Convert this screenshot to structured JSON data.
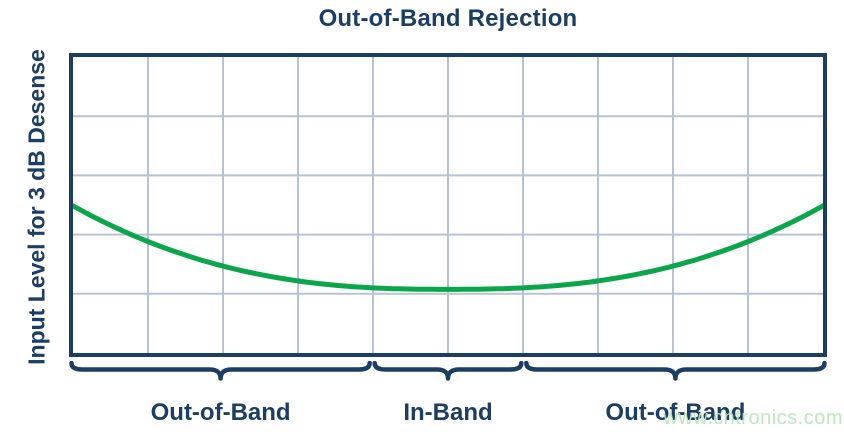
{
  "title": "Out-of-Band Rejection",
  "y_axis_label": "Input Level for 3 dB Desense",
  "watermark": {
    "text": "www.cntronics.com"
  },
  "colors": {
    "navy": "#1c3e63",
    "grid": "#b7c3d2",
    "curve_green": "#0ba64b",
    "watermark_green": "#bce4bd",
    "background": "#ffffff"
  },
  "chart_data": {
    "type": "line",
    "title": "Out-of-Band Rejection",
    "xlabel": "",
    "ylabel": "Input Level for 3 dB Desense",
    "grid": true,
    "axes_note": "No numeric tick labels shown; qualitative frequency (x) vs input level (y) plot",
    "x_axis": {
      "tick_labels": [],
      "grid_columns": 10
    },
    "y_axis": {
      "tick_labels": [],
      "grid_rows": 5
    },
    "series": [
      {
        "name": "input-level-for-3dB-desense",
        "color": "#0ba64b",
        "y_meaning": "fraction of plot height measured from top edge",
        "points_normalized": [
          [
            0.0,
            0.503
          ],
          [
            0.05,
            0.569
          ],
          [
            0.1,
            0.624
          ],
          [
            0.15,
            0.669
          ],
          [
            0.2,
            0.706
          ],
          [
            0.25,
            0.735
          ],
          [
            0.3,
            0.756
          ],
          [
            0.35,
            0.771
          ],
          [
            0.4,
            0.78
          ],
          [
            0.45,
            0.784
          ],
          [
            0.5,
            0.785
          ],
          [
            0.55,
            0.784
          ],
          [
            0.6,
            0.78
          ],
          [
            0.65,
            0.771
          ],
          [
            0.7,
            0.756
          ],
          [
            0.75,
            0.735
          ],
          [
            0.8,
            0.706
          ],
          [
            0.85,
            0.669
          ],
          [
            0.9,
            0.624
          ],
          [
            0.95,
            0.569
          ],
          [
            1.0,
            0.503
          ]
        ]
      }
    ],
    "curve_model": {
      "shape": "symmetric-bathtub",
      "edge_y_frac": 0.503,
      "min_y_frac": 0.785,
      "exponent": 2.5
    },
    "bands": [
      {
        "label": "Out-of-Band",
        "start_frac": 0.0,
        "end_frac": 0.4
      },
      {
        "label": "In-Band",
        "start_frac": 0.4,
        "end_frac": 0.6
      },
      {
        "label": "Out-of-Band",
        "start_frac": 0.6,
        "end_frac": 1.0
      }
    ]
  }
}
